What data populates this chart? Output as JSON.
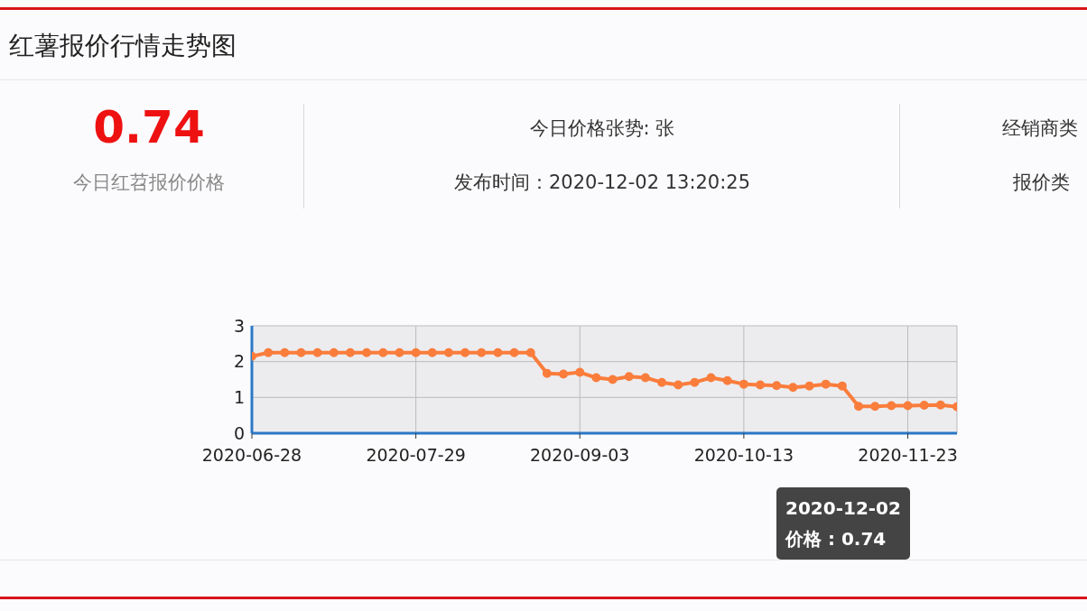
{
  "chart_data": {
    "type": "line",
    "title": "红薯报价行情走势图",
    "annotations": [
      "0.74",
      "今日红苕报价价格",
      "今日价格张势: 张",
      "发布时间：2020-12-02 13:20:25",
      "经销商类",
      "报价类",
      "2020-12-02",
      "价格 : 0.74"
    ],
    "categories": [
      "2020-06-28",
      null,
      null,
      null,
      null,
      null,
      null,
      null,
      null,
      null,
      "2020-07-29",
      null,
      null,
      null,
      null,
      null,
      null,
      null,
      null,
      null,
      "2020-09-03",
      null,
      null,
      null,
      null,
      null,
      null,
      null,
      null,
      null,
      "2020-10-13",
      null,
      null,
      null,
      null,
      null,
      null,
      null,
      null,
      null,
      "2020-11-23",
      null,
      null,
      null
    ],
    "series": [
      {
        "color": "#fa7d3c",
        "values": [
          2.15,
          2.25,
          2.25,
          2.25,
          2.25,
          2.25,
          2.25,
          2.25,
          2.25,
          2.25,
          2.25,
          2.25,
          2.25,
          2.25,
          2.25,
          2.25,
          2.25,
          2.25,
          1.67,
          1.65,
          1.7,
          1.55,
          1.5,
          1.58,
          1.55,
          1.42,
          1.35,
          1.42,
          1.55,
          1.47,
          1.37,
          1.35,
          1.33,
          1.28,
          1.32,
          1.37,
          1.32,
          0.75,
          0.75,
          0.77,
          0.77,
          0.78,
          0.79,
          0.74
        ]
      }
    ],
    "ylim": [
      0,
      3
    ],
    "yticks": [
      0,
      1,
      2,
      3
    ],
    "grid": true,
    "marker": "circle",
    "line_style": "solid"
  }
}
